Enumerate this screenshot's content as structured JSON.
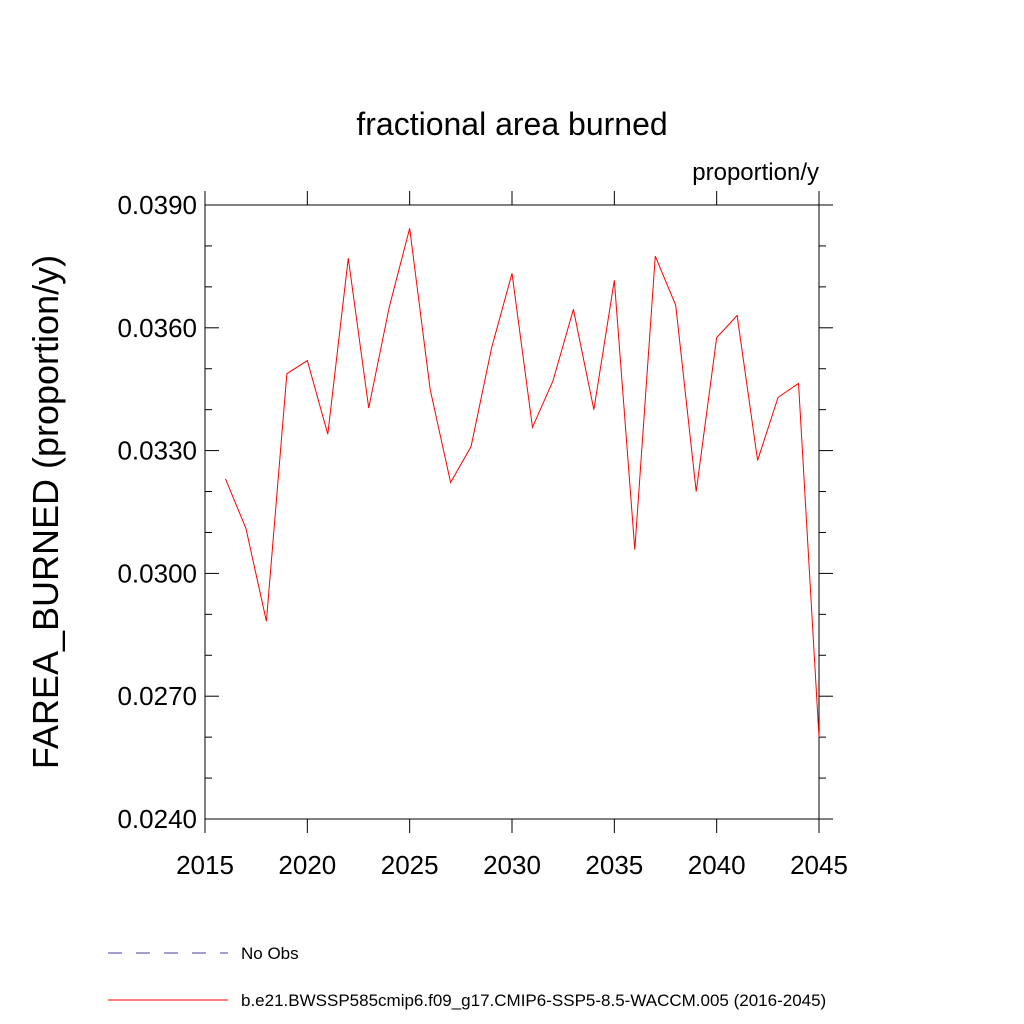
{
  "chart_data": {
    "type": "line",
    "title": "fractional area burned",
    "units_label": "proportion/y",
    "ylabel": "FAREA_BURNED  (proportion/y)",
    "xlabel": "",
    "xlim": [
      2015,
      2045
    ],
    "ylim": [
      0.024,
      0.039
    ],
    "x_ticks": [
      2015,
      2020,
      2025,
      2030,
      2035,
      2040,
      2045
    ],
    "x_tick_labels": [
      "2015",
      "2020",
      "2025",
      "2030",
      "2035",
      "2040",
      "2045"
    ],
    "y_ticks": [
      0.024,
      0.027,
      0.03,
      0.033,
      0.036,
      0.039
    ],
    "y_tick_labels": [
      "0.0240",
      "0.0270",
      "0.0300",
      "0.0330",
      "0.0360",
      "0.0390"
    ],
    "y_minor_step": 0.001,
    "grid": false,
    "series": [
      {
        "name": "b.e21.BWSSP585cmip6.f09_g17.CMIP6-SSP5-8.5-WACCM.005 (2016-2045)",
        "color": "#ff0000",
        "style": "solid",
        "x": [
          2016,
          2017,
          2018,
          2019,
          2020,
          2021,
          2022,
          2023,
          2024,
          2025,
          2026,
          2027,
          2028,
          2029,
          2030,
          2031,
          2032,
          2033,
          2034,
          2035,
          2036,
          2037,
          2038,
          2039,
          2040,
          2041,
          2042,
          2043,
          2044,
          2045
        ],
        "values": [
          0.03231,
          0.0311,
          0.02883,
          0.03488,
          0.0352,
          0.0334,
          0.0377,
          0.03404,
          0.0365,
          0.03843,
          0.0345,
          0.03222,
          0.0331,
          0.0355,
          0.03733,
          0.03357,
          0.0347,
          0.03645,
          0.034,
          0.03716,
          0.03058,
          0.03775,
          0.03655,
          0.032,
          0.03576,
          0.0363,
          0.03276,
          0.0343,
          0.03464,
          0.026
        ]
      }
    ],
    "legend": [
      {
        "label": "No Obs",
        "color": "#4b3fa0",
        "style": "dashed"
      },
      {
        "label": "b.e21.BWSSP585cmip6.f09_g17.CMIP6-SSP5-8.5-WACCM.005 (2016-2045)",
        "color": "#ff0000",
        "style": "solid"
      }
    ]
  }
}
